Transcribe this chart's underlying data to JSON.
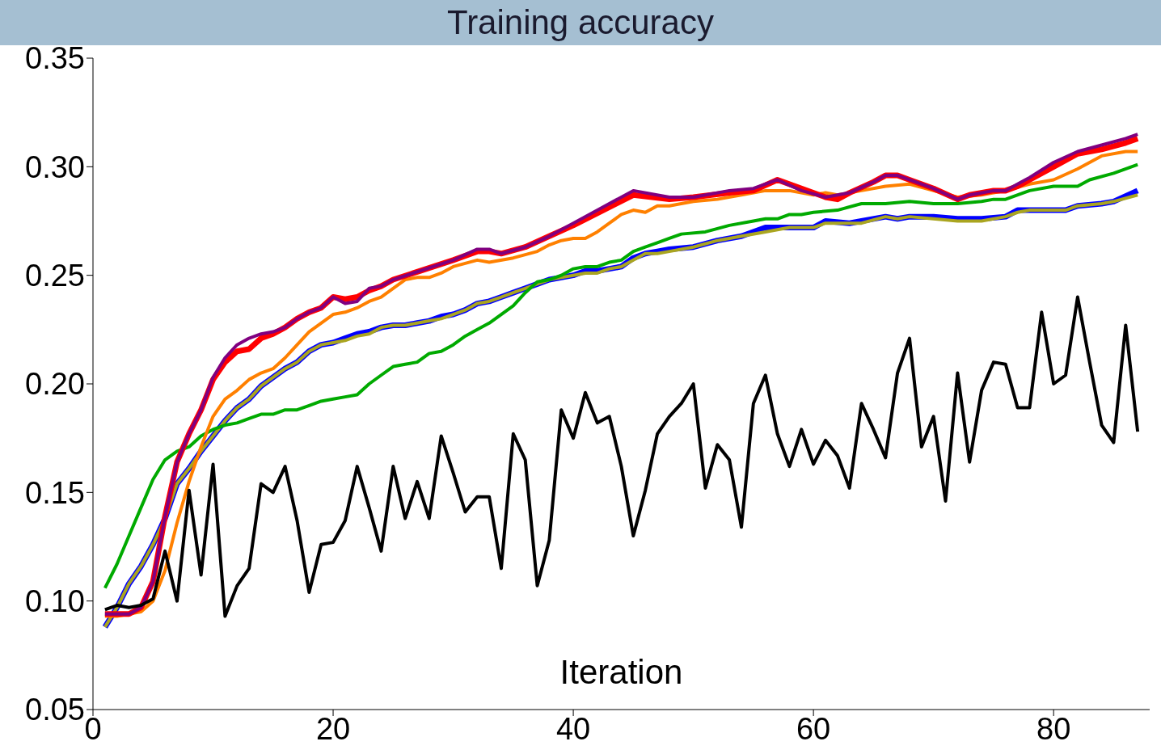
{
  "chart_data": {
    "type": "line",
    "title": "Training accuracy",
    "xlabel": "Iteration",
    "xlim": [
      0,
      88
    ],
    "xticks": [
      0,
      20,
      40,
      60,
      80
    ],
    "ylim": [
      0.05,
      0.35
    ],
    "yticks": [
      {
        "value": 0.05,
        "label": "0.05"
      },
      {
        "value": 0.1,
        "label": "0.10"
      },
      {
        "value": 0.15,
        "label": "0.15"
      },
      {
        "value": 0.2,
        "label": "0.20"
      },
      {
        "value": 0.25,
        "label": "0.25"
      },
      {
        "value": 0.3,
        "label": "0.30"
      },
      {
        "value": 0.35,
        "label": "0.35"
      }
    ],
    "marker": "none",
    "line_style": "solid",
    "series": [
      {
        "color": "#0000ff",
        "x": [
          1,
          2,
          3,
          4,
          5,
          6,
          7,
          8,
          9,
          10,
          11,
          12,
          13,
          14,
          15,
          16,
          17,
          18,
          19,
          20,
          21,
          22,
          23,
          24,
          25,
          26,
          27,
          28,
          29,
          30,
          31,
          32,
          33,
          34,
          35,
          36,
          37,
          38,
          39,
          40,
          41,
          42,
          43,
          44,
          45,
          46,
          47,
          48,
          50,
          52,
          54,
          56,
          58,
          60,
          61,
          63,
          64,
          66,
          67,
          68,
          70,
          72,
          74,
          76,
          77,
          78,
          80,
          81,
          82,
          84,
          85,
          87
        ],
        "values": [
          0.088,
          0.097,
          0.108,
          0.116,
          0.126,
          0.138,
          0.154,
          0.161,
          0.169,
          0.176,
          0.183,
          0.189,
          0.193,
          0.199,
          0.203,
          0.207,
          0.21,
          0.215,
          0.218,
          0.219,
          0.221,
          0.223,
          0.224,
          0.226,
          0.227,
          0.227,
          0.228,
          0.229,
          0.231,
          0.232,
          0.234,
          0.237,
          0.238,
          0.24,
          0.242,
          0.244,
          0.246,
          0.248,
          0.249,
          0.25,
          0.252,
          0.252,
          0.253,
          0.254,
          0.258,
          0.26,
          0.261,
          0.262,
          0.263,
          0.266,
          0.268,
          0.272,
          0.272,
          0.272,
          0.275,
          0.274,
          0.275,
          0.277,
          0.276,
          0.277,
          0.277,
          0.276,
          0.276,
          0.277,
          0.28,
          0.28,
          0.28,
          0.28,
          0.282,
          0.283,
          0.284,
          0.289
        ]
      },
      {
        "color": "#aaa520",
        "x": [
          1,
          2,
          3,
          4,
          5,
          6,
          7,
          8,
          9,
          10,
          11,
          12,
          13,
          14,
          15,
          16,
          17,
          18,
          19,
          20,
          21,
          22,
          23,
          24,
          25,
          26,
          27,
          28,
          29,
          30,
          31,
          32,
          33,
          34,
          35,
          36,
          37,
          38,
          39,
          40,
          41,
          42,
          43,
          44,
          45,
          46,
          47,
          48,
          50,
          52,
          54,
          56,
          58,
          60,
          61,
          63,
          64,
          66,
          67,
          68,
          70,
          72,
          74,
          76,
          77,
          78,
          80,
          81,
          82,
          84,
          85,
          87
        ],
        "values": [
          0.088,
          0.097,
          0.108,
          0.116,
          0.126,
          0.138,
          0.154,
          0.161,
          0.169,
          0.176,
          0.183,
          0.189,
          0.193,
          0.199,
          0.203,
          0.207,
          0.21,
          0.215,
          0.218,
          0.219,
          0.22,
          0.222,
          0.223,
          0.226,
          0.227,
          0.227,
          0.228,
          0.229,
          0.23,
          0.232,
          0.234,
          0.237,
          0.238,
          0.24,
          0.242,
          0.244,
          0.246,
          0.248,
          0.249,
          0.25,
          0.251,
          0.251,
          0.253,
          0.254,
          0.257,
          0.26,
          0.26,
          0.261,
          0.263,
          0.266,
          0.268,
          0.27,
          0.272,
          0.272,
          0.274,
          0.274,
          0.274,
          0.277,
          0.276,
          0.277,
          0.276,
          0.275,
          0.275,
          0.277,
          0.279,
          0.28,
          0.28,
          0.28,
          0.282,
          0.283,
          0.284,
          0.287
        ]
      },
      {
        "color": "#00aa00",
        "x": [
          1,
          2,
          3,
          4,
          5,
          6,
          7,
          8,
          9,
          10,
          11,
          12,
          13,
          14,
          15,
          16,
          17,
          18,
          19,
          20,
          21,
          22,
          23,
          24,
          25,
          26,
          27,
          28,
          29,
          30,
          31,
          32,
          33,
          34,
          35,
          36,
          37,
          38,
          39,
          40,
          41,
          42,
          43,
          44,
          45,
          46,
          47,
          48,
          49,
          51,
          53,
          55,
          56,
          57,
          58,
          59,
          60,
          62,
          64,
          66,
          68,
          70,
          72,
          74,
          75,
          76,
          78,
          80,
          81,
          82,
          83,
          85,
          87
        ],
        "values": [
          0.106,
          0.117,
          0.13,
          0.143,
          0.156,
          0.165,
          0.169,
          0.171,
          0.176,
          0.179,
          0.181,
          0.182,
          0.184,
          0.186,
          0.186,
          0.188,
          0.188,
          0.19,
          0.192,
          0.193,
          0.194,
          0.195,
          0.2,
          0.204,
          0.208,
          0.209,
          0.21,
          0.214,
          0.215,
          0.218,
          0.222,
          0.225,
          0.228,
          0.232,
          0.236,
          0.242,
          0.247,
          0.248,
          0.25,
          0.253,
          0.254,
          0.254,
          0.256,
          0.257,
          0.261,
          0.263,
          0.265,
          0.267,
          0.269,
          0.27,
          0.273,
          0.275,
          0.276,
          0.276,
          0.278,
          0.278,
          0.279,
          0.28,
          0.283,
          0.283,
          0.284,
          0.283,
          0.283,
          0.284,
          0.285,
          0.285,
          0.289,
          0.291,
          0.291,
          0.291,
          0.294,
          0.297,
          0.301
        ]
      },
      {
        "color": "#ff8000",
        "x": [
          1,
          2,
          3,
          4,
          5,
          6,
          7,
          8,
          9,
          10,
          11,
          12,
          13,
          14,
          15,
          16,
          17,
          18,
          19,
          20,
          21,
          22,
          23,
          24,
          25,
          26,
          27,
          28,
          29,
          30,
          32,
          33,
          35,
          37,
          38,
          39,
          40,
          41,
          42,
          43,
          44,
          45,
          46,
          47,
          48,
          50,
          52,
          54,
          56,
          58,
          60,
          61,
          62,
          64,
          66,
          68,
          70,
          72,
          74,
          76,
          78,
          80,
          82,
          84,
          86,
          87
        ],
        "values": [
          0.093,
          0.093,
          0.094,
          0.095,
          0.1,
          0.114,
          0.136,
          0.155,
          0.171,
          0.185,
          0.193,
          0.197,
          0.202,
          0.205,
          0.207,
          0.212,
          0.218,
          0.224,
          0.228,
          0.232,
          0.233,
          0.235,
          0.238,
          0.24,
          0.244,
          0.248,
          0.249,
          0.249,
          0.251,
          0.254,
          0.257,
          0.256,
          0.258,
          0.261,
          0.264,
          0.266,
          0.267,
          0.267,
          0.27,
          0.274,
          0.278,
          0.28,
          0.279,
          0.282,
          0.282,
          0.284,
          0.285,
          0.287,
          0.289,
          0.289,
          0.287,
          0.288,
          0.287,
          0.289,
          0.291,
          0.292,
          0.289,
          0.286,
          0.287,
          0.289,
          0.292,
          0.294,
          0.299,
          0.305,
          0.307,
          0.307
        ]
      },
      {
        "color": "#ff0000",
        "x": [
          1,
          2,
          3,
          4,
          5,
          6,
          7,
          8,
          9,
          10,
          11,
          12,
          13,
          14,
          15,
          16,
          17,
          18,
          19,
          20,
          21,
          22,
          23,
          24,
          25,
          30,
          32,
          33,
          34,
          36,
          38,
          40,
          45,
          48,
          50,
          53,
          55,
          57,
          59,
          61,
          62,
          63,
          65,
          66,
          67,
          68,
          70,
          72,
          73,
          75,
          76,
          77,
          78,
          80,
          82,
          84,
          86,
          87
        ],
        "values": [
          0.094,
          0.094,
          0.094,
          0.097,
          0.109,
          0.139,
          0.164,
          0.177,
          0.188,
          0.202,
          0.21,
          0.215,
          0.216,
          0.221,
          0.223,
          0.226,
          0.23,
          0.233,
          0.235,
          0.24,
          0.239,
          0.24,
          0.243,
          0.245,
          0.248,
          0.257,
          0.261,
          0.261,
          0.26,
          0.263,
          0.268,
          0.273,
          0.287,
          0.285,
          0.286,
          0.288,
          0.289,
          0.294,
          0.29,
          0.286,
          0.285,
          0.288,
          0.293,
          0.296,
          0.296,
          0.294,
          0.29,
          0.285,
          0.287,
          0.289,
          0.289,
          0.291,
          0.294,
          0.3,
          0.306,
          0.308,
          0.311,
          0.313
        ]
      },
      {
        "color": "#800080",
        "x": [
          1,
          2,
          3,
          4,
          5,
          6,
          7,
          8,
          9,
          10,
          11,
          12,
          13,
          14,
          15,
          16,
          17,
          18,
          19,
          20,
          21,
          22,
          23,
          24,
          25,
          30,
          32,
          33,
          34,
          36,
          38,
          40,
          45,
          48,
          50,
          53,
          55,
          57,
          59,
          61,
          62,
          63,
          65,
          66,
          67,
          68,
          70,
          72,
          73,
          75,
          76,
          77,
          78,
          80,
          82,
          84,
          86,
          87
        ],
        "values": [
          0.094,
          0.094,
          0.094,
          0.097,
          0.109,
          0.139,
          0.164,
          0.177,
          0.188,
          0.203,
          0.212,
          0.218,
          0.221,
          0.223,
          0.224,
          0.226,
          0.23,
          0.233,
          0.235,
          0.24,
          0.237,
          0.238,
          0.244,
          0.245,
          0.248,
          0.257,
          0.262,
          0.262,
          0.26,
          0.263,
          0.268,
          0.274,
          0.289,
          0.286,
          0.286,
          0.289,
          0.29,
          0.294,
          0.289,
          0.286,
          0.287,
          0.288,
          0.293,
          0.296,
          0.296,
          0.294,
          0.29,
          0.285,
          0.287,
          0.289,
          0.289,
          0.292,
          0.295,
          0.302,
          0.307,
          0.31,
          0.313,
          0.315
        ]
      },
      {
        "color": "#000000",
        "x": [
          1,
          2,
          3,
          4,
          5,
          6,
          7,
          8,
          9,
          10,
          11,
          12,
          13,
          14,
          15,
          16,
          17,
          18,
          19,
          20,
          21,
          22,
          23,
          24,
          25,
          26,
          27,
          28,
          29,
          30,
          31,
          32,
          33,
          34,
          35,
          36,
          37,
          38,
          39,
          40,
          41,
          42,
          43,
          44,
          45,
          46,
          47,
          48,
          49,
          50,
          51,
          52,
          53,
          54,
          55,
          56,
          57,
          58,
          59,
          60,
          61,
          62,
          63,
          64,
          65,
          66,
          67,
          68,
          69,
          70,
          71,
          72,
          73,
          74,
          75,
          76,
          77,
          78,
          79,
          80,
          81,
          82,
          83,
          84,
          85,
          86,
          87
        ],
        "values": [
          0.096,
          0.098,
          0.097,
          0.098,
          0.101,
          0.123,
          0.1,
          0.151,
          0.112,
          0.163,
          0.093,
          0.107,
          0.115,
          0.154,
          0.15,
          0.162,
          0.137,
          0.104,
          0.126,
          0.127,
          0.137,
          0.162,
          0.143,
          0.123,
          0.162,
          0.138,
          0.155,
          0.138,
          0.176,
          0.159,
          0.141,
          0.148,
          0.148,
          0.115,
          0.177,
          0.165,
          0.107,
          0.128,
          0.188,
          0.175,
          0.196,
          0.182,
          0.185,
          0.162,
          0.13,
          0.151,
          0.177,
          0.185,
          0.191,
          0.2,
          0.152,
          0.172,
          0.165,
          0.134,
          0.191,
          0.204,
          0.177,
          0.162,
          0.179,
          0.163,
          0.174,
          0.167,
          0.152,
          0.191,
          0.179,
          0.166,
          0.205,
          0.221,
          0.171,
          0.185,
          0.146,
          0.205,
          0.164,
          0.197,
          0.21,
          0.209,
          0.189,
          0.189,
          0.233,
          0.2,
          0.204,
          0.24,
          0.21,
          0.181,
          0.173,
          0.227,
          0.178
        ]
      }
    ]
  }
}
